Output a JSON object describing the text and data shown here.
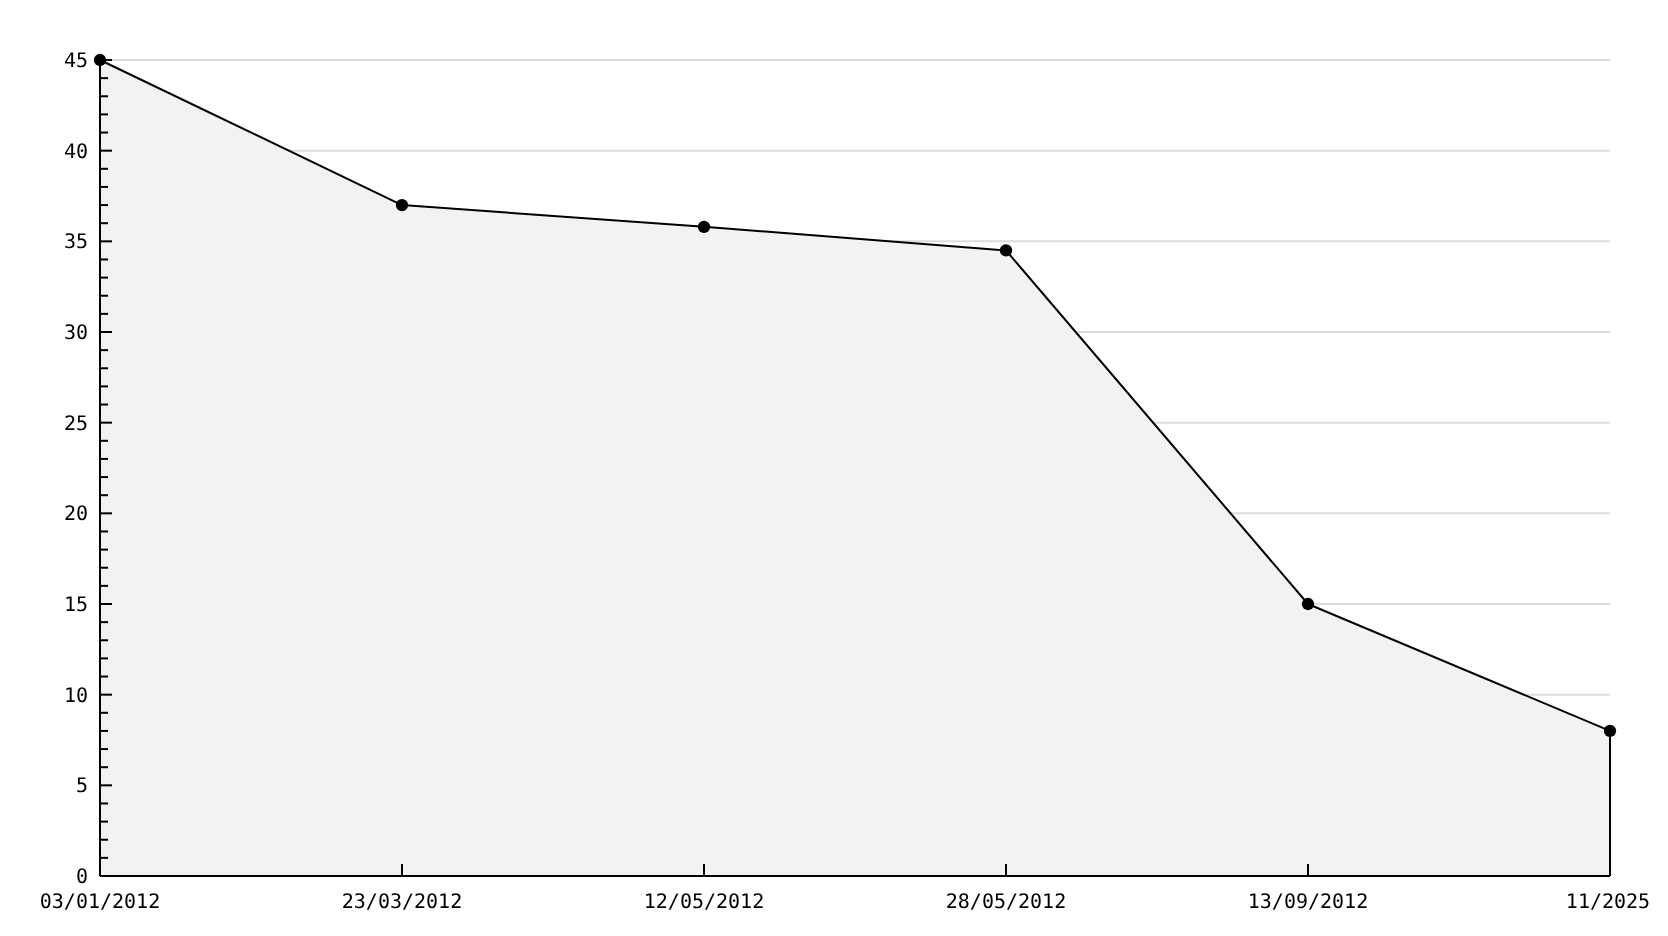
{
  "chart_data": {
    "type": "area",
    "categories": [
      "03/01/2012",
      "23/03/2012",
      "12/05/2012",
      "28/05/2012",
      "13/09/2012",
      "11/2025"
    ],
    "series": [
      {
        "color": "#f2f2f2",
        "values": [
          45,
          37,
          35.8,
          34.5,
          15,
          8
        ]
      }
    ],
    "ylim": [
      0,
      45
    ],
    "yticks": [
      0,
      {
        "value": 1,
        "label": null
      },
      {
        "value": 2,
        "label": null
      },
      {
        "value": 3,
        "label": null
      },
      {
        "value": 4,
        "label": null
      },
      5,
      {
        "value": 6,
        "label": null
      },
      {
        "value": 7,
        "label": null
      },
      {
        "value": 8,
        "label": null
      },
      {
        "value": 9,
        "label": null
      },
      10,
      {
        "value": 11,
        "label": null
      },
      {
        "value": 12,
        "label": null
      },
      {
        "value": 13,
        "label": null
      },
      {
        "value": 14,
        "label": null
      },
      15,
      {
        "value": 16,
        "label": null
      },
      {
        "value": 17,
        "label": null
      },
      {
        "value": 18,
        "label": null
      },
      {
        "value": 19,
        "label": null
      },
      20,
      {
        "value": 21,
        "label": null
      },
      {
        "value": 22,
        "label": null
      },
      {
        "value": 23,
        "label": null
      },
      {
        "value": 24,
        "label": null
      },
      25,
      {
        "value": 26,
        "label": null
      },
      {
        "value": 27,
        "label": null
      },
      {
        "value": 28,
        "label": null
      },
      {
        "value": 29,
        "label": null
      },
      30,
      {
        "value": 31,
        "label": null
      },
      {
        "value": 32,
        "label": null
      },
      {
        "value": 33,
        "label": null
      },
      {
        "value": 34,
        "label": null
      },
      35,
      {
        "value": 36,
        "label": null
      },
      {
        "value": 37,
        "label": null
      },
      {
        "value": 38,
        "label": null
      },
      {
        "value": 39,
        "label": null
      },
      40,
      {
        "value": 41,
        "label": null
      },
      {
        "value": 42,
        "label": null
      },
      {
        "value": 43,
        "label": null
      },
      {
        "value": 44,
        "label": null
      },
      45
    ],
    "grid": "y",
    "marker": "circle"
  }
}
